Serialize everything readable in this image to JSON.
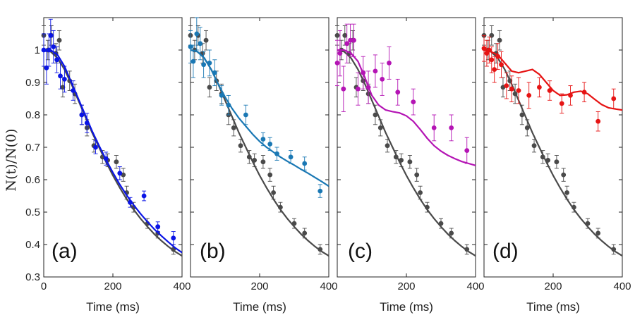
{
  "chart_data": {
    "type": "scatter",
    "ylabel": "N(t)/N(0)",
    "ylim": [
      0.3,
      1.1
    ],
    "xlim": [
      0,
      400
    ],
    "y_ticks": [
      0.3,
      0.4,
      0.5,
      0.6,
      0.7,
      0.8,
      0.9,
      1
    ],
    "y_tick_labels": [
      "0.3",
      "0.4",
      "0.5",
      "0.6",
      "0.7",
      "0.8",
      "0.9",
      "1"
    ],
    "x_tick_labels": [
      "0",
      "200",
      "400"
    ],
    "reference_color": "#4a4a4a",
    "reference_points": [
      {
        "x": 0,
        "y": 1.045,
        "err": 0.03
      },
      {
        "x": 12,
        "y": 1.0,
        "err": 0.03
      },
      {
        "x": 22,
        "y": 1.045,
        "err": 0.03
      },
      {
        "x": 35,
        "y": 0.99,
        "err": 0.03
      },
      {
        "x": 45,
        "y": 1.03,
        "err": 0.03
      },
      {
        "x": 55,
        "y": 0.885,
        "err": 0.03
      },
      {
        "x": 75,
        "y": 0.905,
        "err": 0.03
      },
      {
        "x": 90,
        "y": 0.865,
        "err": 0.03
      },
      {
        "x": 110,
        "y": 0.8,
        "err": 0.03
      },
      {
        "x": 125,
        "y": 0.76,
        "err": 0.025
      },
      {
        "x": 145,
        "y": 0.705,
        "err": 0.02
      },
      {
        "x": 170,
        "y": 0.67,
        "err": 0.02
      },
      {
        "x": 185,
        "y": 0.66,
        "err": 0.02
      },
      {
        "x": 210,
        "y": 0.655,
        "err": 0.02
      },
      {
        "x": 230,
        "y": 0.615,
        "err": 0.02
      },
      {
        "x": 240,
        "y": 0.56,
        "err": 0.02
      },
      {
        "x": 260,
        "y": 0.515,
        "err": 0.015
      },
      {
        "x": 300,
        "y": 0.465,
        "err": 0.015
      },
      {
        "x": 330,
        "y": 0.435,
        "err": 0.015
      },
      {
        "x": 375,
        "y": 0.385,
        "err": 0.015
      }
    ],
    "reference_curve": {
      "x": [
        0,
        20,
        40,
        60,
        80,
        100,
        120,
        140,
        160,
        180,
        200,
        220,
        240,
        260,
        280,
        300,
        320,
        340,
        360,
        380,
        400
      ],
      "y": [
        1.0,
        0.995,
        0.975,
        0.94,
        0.895,
        0.845,
        0.795,
        0.745,
        0.7,
        0.655,
        0.613,
        0.575,
        0.54,
        0.508,
        0.48,
        0.455,
        0.432,
        0.412,
        0.394,
        0.378,
        0.365
      ]
    },
    "panels": [
      {
        "label": "(a)",
        "xlabel": "Time (ms)",
        "color": "#0a14e6",
        "points": [
          {
            "x": 0,
            "y": 1.0,
            "err": 0.05
          },
          {
            "x": 8,
            "y": 0.945,
            "err": 0.05
          },
          {
            "x": 15,
            "y": 1.0,
            "err": 0.05
          },
          {
            "x": 20,
            "y": 1.045,
            "err": 0.05
          },
          {
            "x": 28,
            "y": 1.01,
            "err": 0.05
          },
          {
            "x": 38,
            "y": 0.97,
            "err": 0.04
          },
          {
            "x": 48,
            "y": 0.92,
            "err": 0.04
          },
          {
            "x": 60,
            "y": 0.91,
            "err": 0.04
          },
          {
            "x": 85,
            "y": 0.875,
            "err": 0.03
          },
          {
            "x": 110,
            "y": 0.8,
            "err": 0.03
          },
          {
            "x": 125,
            "y": 0.775,
            "err": 0.03
          },
          {
            "x": 150,
            "y": 0.7,
            "err": 0.02
          },
          {
            "x": 180,
            "y": 0.665,
            "err": 0.02
          },
          {
            "x": 220,
            "y": 0.62,
            "err": 0.02
          },
          {
            "x": 250,
            "y": 0.53,
            "err": 0.015
          },
          {
            "x": 290,
            "y": 0.55,
            "err": 0.015
          },
          {
            "x": 330,
            "y": 0.455,
            "err": 0.015
          },
          {
            "x": 375,
            "y": 0.42,
            "err": 0.02
          }
        ],
        "curve": {
          "x": [
            0,
            20,
            40,
            60,
            80,
            100,
            120,
            140,
            160,
            180,
            200,
            220,
            240,
            260,
            280,
            300,
            320,
            340,
            360,
            380,
            400
          ],
          "y": [
            1.0,
            1.0,
            0.985,
            0.95,
            0.9,
            0.85,
            0.8,
            0.75,
            0.705,
            0.662,
            0.622,
            0.585,
            0.552,
            0.522,
            0.495,
            0.47,
            0.447,
            0.427,
            0.408,
            0.39,
            0.375
          ]
        }
      },
      {
        "label": "(b)",
        "xlabel": "Time (ms)",
        "color": "#1a78b4",
        "points": [
          {
            "x": 0,
            "y": 1.01,
            "err": 0.05
          },
          {
            "x": 8,
            "y": 0.965,
            "err": 0.05
          },
          {
            "x": 18,
            "y": 1.05,
            "err": 0.05
          },
          {
            "x": 28,
            "y": 1.02,
            "err": 0.05
          },
          {
            "x": 38,
            "y": 0.955,
            "err": 0.04
          },
          {
            "x": 55,
            "y": 0.96,
            "err": 0.04
          },
          {
            "x": 70,
            "y": 0.93,
            "err": 0.04
          },
          {
            "x": 90,
            "y": 0.86,
            "err": 0.03
          },
          {
            "x": 110,
            "y": 0.83,
            "err": 0.03
          },
          {
            "x": 160,
            "y": 0.8,
            "err": 0.03
          },
          {
            "x": 210,
            "y": 0.725,
            "err": 0.02
          },
          {
            "x": 230,
            "y": 0.71,
            "err": 0.02
          },
          {
            "x": 250,
            "y": 0.68,
            "err": 0.02
          },
          {
            "x": 290,
            "y": 0.67,
            "err": 0.02
          },
          {
            "x": 330,
            "y": 0.65,
            "err": 0.02
          },
          {
            "x": 375,
            "y": 0.565,
            "err": 0.02
          }
        ],
        "curve": {
          "x": [
            0,
            20,
            40,
            60,
            80,
            100,
            120,
            140,
            160,
            180,
            200,
            220,
            240,
            260,
            280,
            300,
            320,
            340,
            360,
            380,
            400
          ],
          "y": [
            1.0,
            0.995,
            0.975,
            0.94,
            0.895,
            0.855,
            0.82,
            0.79,
            0.765,
            0.74,
            0.718,
            0.7,
            0.685,
            0.67,
            0.657,
            0.645,
            0.632,
            0.62,
            0.607,
            0.594,
            0.58
          ]
        }
      },
      {
        "label": "(c)",
        "xlabel": "Time (ms)",
        "color": "#b414b4",
        "points": [
          {
            "x": 0,
            "y": 0.96,
            "err": 0.07
          },
          {
            "x": 8,
            "y": 0.99,
            "err": 0.07
          },
          {
            "x": 18,
            "y": 0.88,
            "err": 0.07
          },
          {
            "x": 28,
            "y": 1.02,
            "err": 0.06
          },
          {
            "x": 38,
            "y": 1.03,
            "err": 0.05
          },
          {
            "x": 48,
            "y": 1.03,
            "err": 0.05
          },
          {
            "x": 60,
            "y": 0.88,
            "err": 0.05
          },
          {
            "x": 75,
            "y": 0.93,
            "err": 0.05
          },
          {
            "x": 90,
            "y": 0.885,
            "err": 0.05
          },
          {
            "x": 110,
            "y": 0.935,
            "err": 0.05
          },
          {
            "x": 130,
            "y": 0.91,
            "err": 0.05
          },
          {
            "x": 150,
            "y": 0.96,
            "err": 0.05
          },
          {
            "x": 175,
            "y": 0.87,
            "err": 0.04
          },
          {
            "x": 220,
            "y": 0.84,
            "err": 0.04
          },
          {
            "x": 280,
            "y": 0.76,
            "err": 0.04
          },
          {
            "x": 330,
            "y": 0.76,
            "err": 0.04
          },
          {
            "x": 375,
            "y": 0.69,
            "err": 0.04
          }
        ],
        "curve": {
          "x": [
            0,
            20,
            40,
            60,
            80,
            100,
            120,
            140,
            160,
            180,
            200,
            220,
            240,
            260,
            280,
            300,
            320,
            340,
            360,
            380,
            400
          ],
          "y": [
            1.0,
            1.0,
            0.99,
            0.965,
            0.915,
            0.86,
            0.83,
            0.815,
            0.81,
            0.806,
            0.797,
            0.78,
            0.755,
            0.728,
            0.705,
            0.688,
            0.675,
            0.665,
            0.656,
            0.65,
            0.644
          ]
        }
      },
      {
        "label": "(d)",
        "xlabel": "Time (ms)",
        "color": "#e61414",
        "points": [
          {
            "x": 0,
            "y": 1.005,
            "err": 0.04
          },
          {
            "x": 8,
            "y": 0.99,
            "err": 0.04
          },
          {
            "x": 15,
            "y": 1.0,
            "err": 0.04
          },
          {
            "x": 22,
            "y": 0.97,
            "err": 0.04
          },
          {
            "x": 30,
            "y": 0.94,
            "err": 0.04
          },
          {
            "x": 40,
            "y": 0.98,
            "err": 0.04
          },
          {
            "x": 50,
            "y": 0.955,
            "err": 0.04
          },
          {
            "x": 65,
            "y": 0.89,
            "err": 0.04
          },
          {
            "x": 80,
            "y": 0.88,
            "err": 0.04
          },
          {
            "x": 100,
            "y": 0.875,
            "err": 0.04
          },
          {
            "x": 130,
            "y": 0.86,
            "err": 0.04
          },
          {
            "x": 160,
            "y": 0.885,
            "err": 0.03
          },
          {
            "x": 190,
            "y": 0.875,
            "err": 0.03
          },
          {
            "x": 225,
            "y": 0.835,
            "err": 0.03
          },
          {
            "x": 250,
            "y": 0.86,
            "err": 0.03
          },
          {
            "x": 290,
            "y": 0.87,
            "err": 0.03
          },
          {
            "x": 330,
            "y": 0.78,
            "err": 0.03
          },
          {
            "x": 375,
            "y": 0.85,
            "err": 0.03
          }
        ],
        "curve": {
          "x": [
            0,
            20,
            40,
            60,
            80,
            100,
            120,
            140,
            160,
            180,
            200,
            220,
            240,
            260,
            280,
            300,
            320,
            340,
            360,
            380,
            400
          ],
          "y": [
            1.0,
            0.995,
            0.985,
            0.96,
            0.935,
            0.93,
            0.935,
            0.94,
            0.925,
            0.9,
            0.875,
            0.86,
            0.862,
            0.87,
            0.873,
            0.865,
            0.848,
            0.832,
            0.822,
            0.818,
            0.815
          ]
        }
      }
    ]
  }
}
